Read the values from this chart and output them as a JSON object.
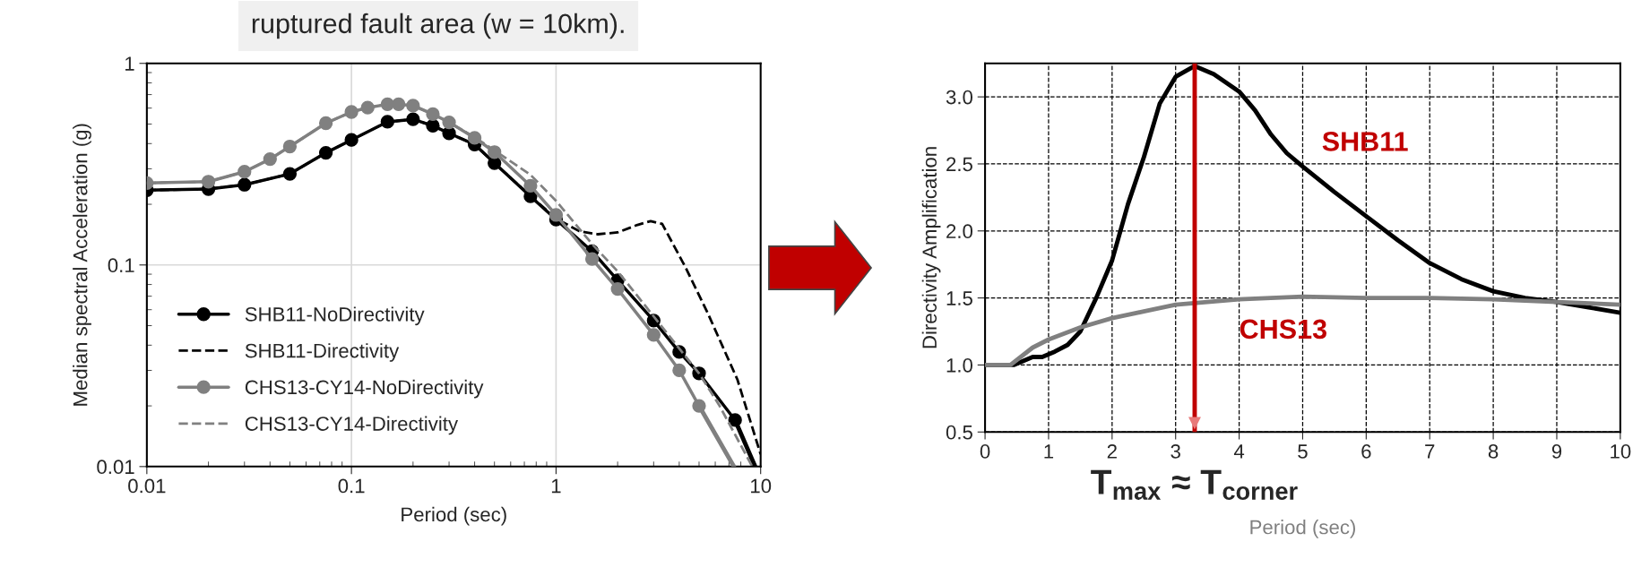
{
  "chart_data": [
    {
      "type": "line",
      "xlabel": "Period (sec)",
      "ylabel": "Median spectral Acceleration (g)",
      "log": "xy",
      "xlim": [
        0.01,
        10
      ],
      "ylim": [
        0.01,
        1
      ],
      "xticks": [
        0.01,
        0.1,
        1,
        10
      ],
      "yticks": [
        0.01,
        0.1,
        1
      ],
      "grid": true,
      "legend": "bottom left",
      "annotations": [
        "ruptured fault area (w = 10km)."
      ],
      "series": [
        {
          "name": "SHB11-NoDirectivity",
          "color": "#000000",
          "marker": "circle",
          "line_style": "solid",
          "x": [
            0.01,
            0.02,
            0.03,
            0.05,
            0.075,
            0.1,
            0.15,
            0.2,
            0.25,
            0.3,
            0.4,
            0.5,
            0.75,
            1,
            1.5,
            2,
            3,
            4,
            5,
            7.5
          ],
          "values": [
            0.235,
            0.238,
            0.25,
            0.283,
            0.36,
            0.417,
            0.513,
            0.528,
            0.49,
            0.45,
            0.396,
            0.32,
            0.219,
            0.168,
            0.117,
            0.084,
            0.053,
            0.037,
            0.029,
            0.017
          ]
        },
        {
          "color": "#000000",
          "marker": "none",
          "line_style": "solid",
          "x": [
            7.5,
            9.4
          ],
          "values": [
            0.017,
            0.01
          ]
        },
        {
          "name": "SHB11-Directivity",
          "color": "#000000",
          "marker": "none",
          "line_style": "dashed",
          "x": [
            0.01,
            0.02,
            0.03,
            0.05,
            0.075,
            0.1,
            0.15,
            0.2,
            0.25,
            0.3,
            0.4,
            0.5,
            0.75,
            1,
            1.3,
            1.6,
            2,
            2.5,
            2.9,
            3.3,
            4.3,
            5.5,
            7.7,
            10
          ],
          "values": [
            0.235,
            0.238,
            0.25,
            0.283,
            0.36,
            0.417,
            0.513,
            0.528,
            0.49,
            0.45,
            0.396,
            0.32,
            0.22,
            0.17,
            0.147,
            0.142,
            0.145,
            0.158,
            0.165,
            0.16,
            0.097,
            0.058,
            0.027,
            0.0115
          ]
        },
        {
          "name": "CHS13-CY14-NoDirectivity",
          "color": "#808080",
          "marker": "circle",
          "line_style": "solid",
          "x": [
            0.01,
            0.02,
            0.03,
            0.04,
            0.05,
            0.075,
            0.1,
            0.12,
            0.15,
            0.17,
            0.2,
            0.25,
            0.3,
            0.4,
            0.5,
            0.75,
            1,
            1.5,
            2,
            3,
            4,
            5
          ],
          "values": [
            0.255,
            0.259,
            0.29,
            0.335,
            0.387,
            0.505,
            0.574,
            0.603,
            0.627,
            0.627,
            0.617,
            0.56,
            0.51,
            0.427,
            0.363,
            0.247,
            0.177,
            0.107,
            0.076,
            0.045,
            0.03,
            0.02
          ]
        },
        {
          "color": "#808080",
          "marker": "none",
          "line_style": "solid",
          "x": [
            5,
            7.4
          ],
          "values": [
            0.02,
            0.01
          ]
        },
        {
          "name": "CHS13-CY14-Directivity",
          "color": "#808080",
          "marker": "none",
          "line_style": "dashed",
          "x": [
            0.01,
            0.02,
            0.03,
            0.04,
            0.05,
            0.075,
            0.1,
            0.12,
            0.15,
            0.17,
            0.2,
            0.25,
            0.3,
            0.4,
            0.5,
            0.75,
            1,
            1.5,
            2,
            2.3,
            5,
            6.3,
            9.1
          ],
          "values": [
            0.255,
            0.259,
            0.29,
            0.335,
            0.387,
            0.505,
            0.574,
            0.603,
            0.627,
            0.627,
            0.617,
            0.56,
            0.51,
            0.43,
            0.37,
            0.28,
            0.208,
            0.127,
            0.093,
            0.078,
            0.029,
            0.02,
            0.01
          ]
        }
      ]
    },
    {
      "type": "line",
      "xlabel": "Period (sec)",
      "ylabel": "Directivity Amplification",
      "xlim": [
        0,
        10
      ],
      "ylim": [
        0.5,
        3.25
      ],
      "xticks": [
        0,
        1,
        2,
        3,
        4,
        5,
        6,
        7,
        8,
        9,
        10
      ],
      "yticks": [
        {
          "value": 0.5,
          "label": "0.5"
        },
        {
          "value": 1,
          "label": "1.0"
        },
        {
          "value": 1.5,
          "label": "1.5"
        },
        {
          "value": 2,
          "label": "2.0"
        },
        {
          "value": 2.5,
          "label": "2.5"
        },
        {
          "value": 3,
          "label": "3.0"
        }
      ],
      "grid": true,
      "legend": false,
      "ref_lines": [
        {
          "axis": "x",
          "value": 3.3,
          "label": "T$_{max}$ ≈ T$_{corner}$",
          "color": "#c00000"
        }
      ],
      "series": [
        {
          "name": "SHB11",
          "color": "#000000",
          "x": [
            0,
            0.45,
            0.6,
            0.75,
            0.9,
            1.1,
            1.3,
            1.5,
            1.75,
            2,
            2.25,
            2.5,
            2.75,
            3,
            3.3,
            3.6,
            4,
            4.25,
            4.5,
            4.75,
            5,
            5.5,
            6,
            6.5,
            7,
            7.5,
            8,
            8.5,
            9,
            9.5,
            10
          ],
          "values": [
            1.0,
            1.0,
            1.03,
            1.06,
            1.06,
            1.1,
            1.15,
            1.25,
            1.5,
            1.78,
            2.2,
            2.55,
            2.95,
            3.15,
            3.23,
            3.17,
            3.04,
            2.9,
            2.72,
            2.58,
            2.48,
            2.29,
            2.11,
            1.93,
            1.76,
            1.64,
            1.55,
            1.5,
            1.47,
            1.43,
            1.39
          ]
        },
        {
          "name": "CHS13",
          "color": "#808080",
          "x": [
            0,
            0.4,
            0.75,
            1,
            1.5,
            2,
            2.5,
            3,
            4,
            5,
            6,
            7,
            8,
            9,
            10
          ],
          "values": [
            1.0,
            1.0,
            1.13,
            1.19,
            1.28,
            1.35,
            1.4,
            1.45,
            1.49,
            1.51,
            1.5,
            1.5,
            1.49,
            1.47,
            1.45
          ]
        }
      ]
    }
  ]
}
